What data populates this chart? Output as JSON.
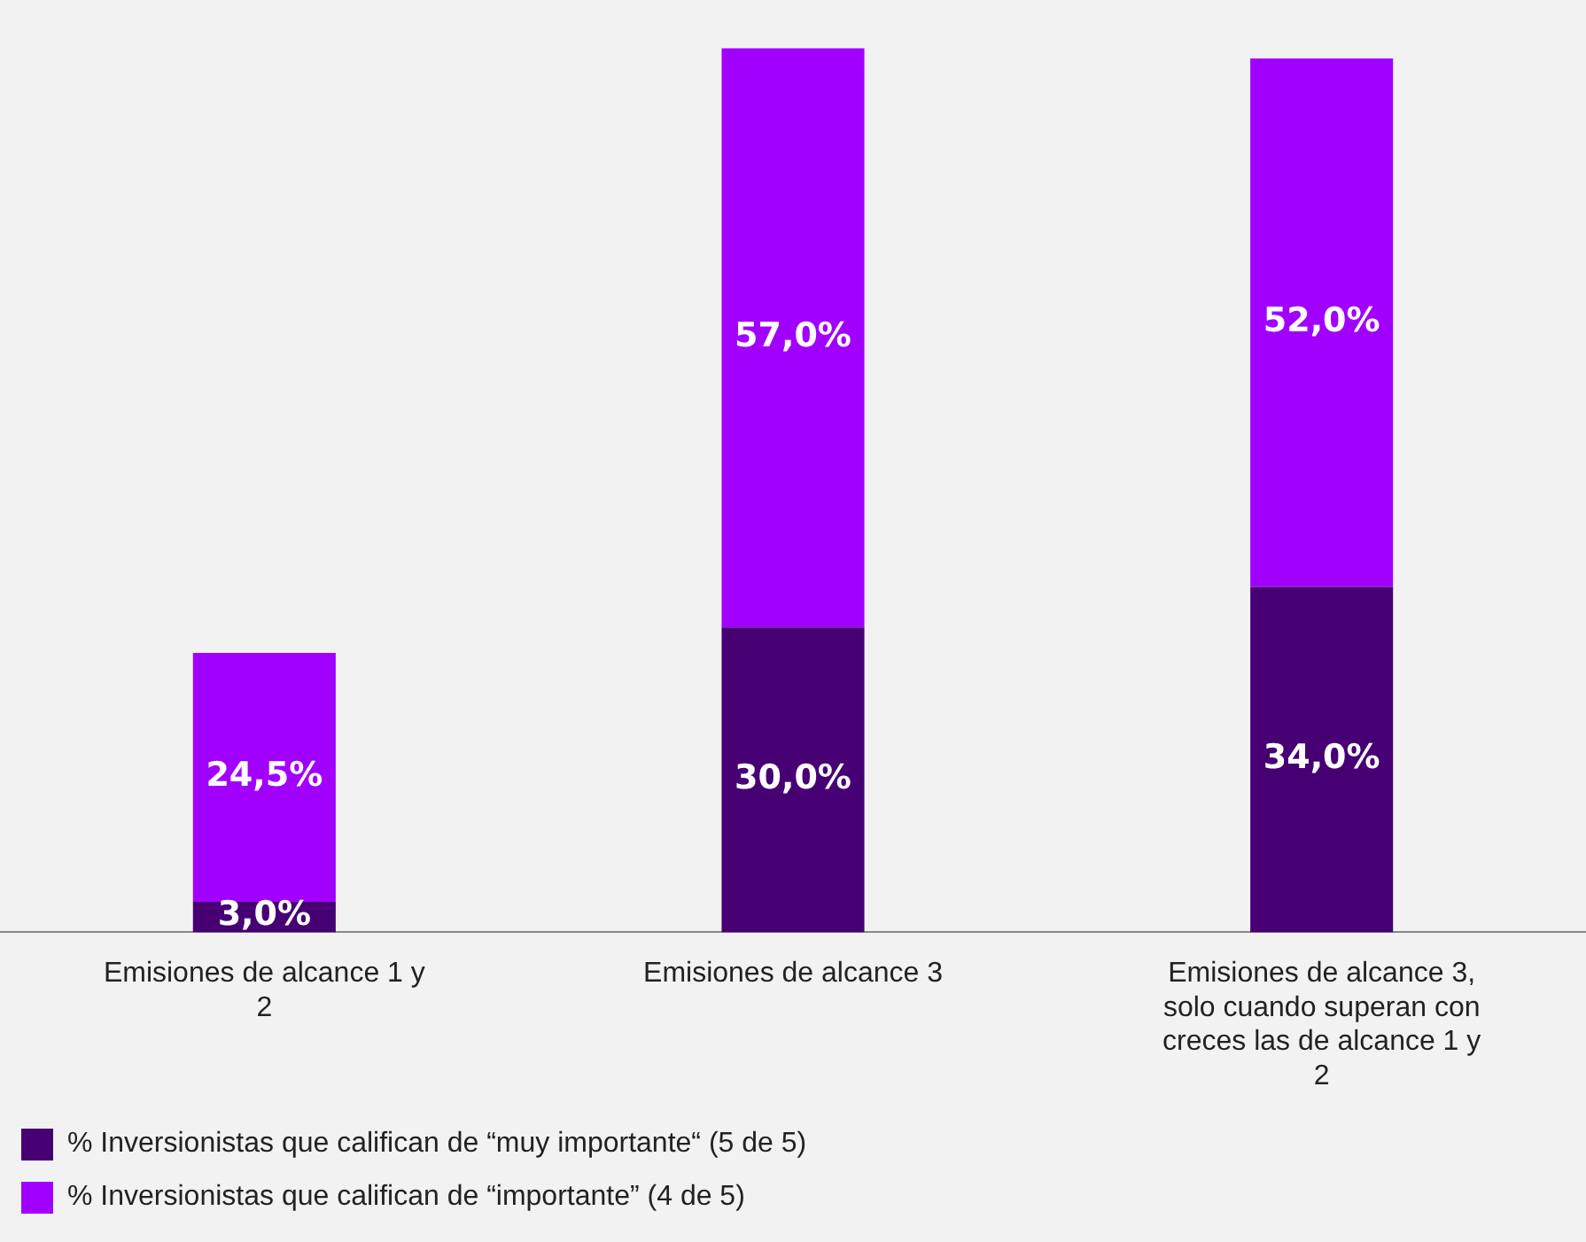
{
  "chart_data": {
    "type": "bar",
    "stacked": true,
    "categories": [
      "Emisiones de alcance 1 y 2",
      "Emisiones de alcance 3",
      "Emisiones de alcance 3, solo cuando superan con creces las de alcance 1 y 2"
    ],
    "series": [
      {
        "name": "% Inversionistas que califican de “muy importante“ (5 de 5)",
        "color": "#460073",
        "values": [
          3.0,
          30.0,
          34.0
        ],
        "value_labels": [
          "3,0%",
          "30,0%",
          "34,0%"
        ]
      },
      {
        "name": "% Inversionistas que califican de “importante” (4 de 5)",
        "color": "#a100ff",
        "values": [
          24.5,
          57.0,
          52.0
        ],
        "value_labels": [
          "24,5%",
          "57,0%",
          "52,0%"
        ]
      }
    ],
    "legend": "bottom left",
    "grid": false
  }
}
